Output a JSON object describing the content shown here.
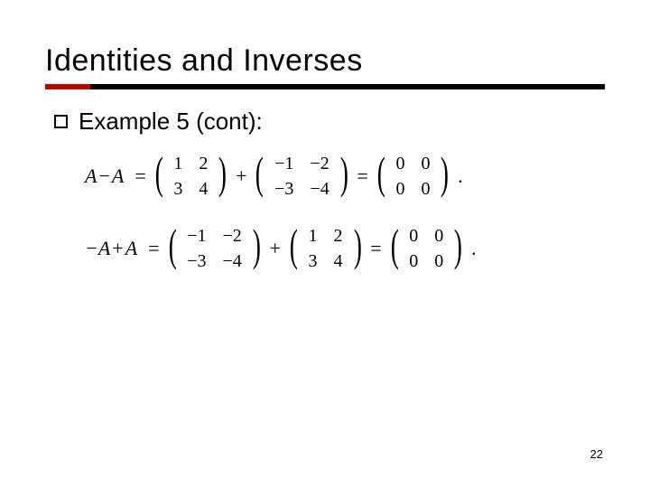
{
  "title": "Identities and Inverses",
  "underline": {
    "primary_color": "#b80000",
    "secondary_color": "#000000"
  },
  "bullet": {
    "text": "Example 5 (cont):"
  },
  "equations": [
    {
      "lhs_pre": "A",
      "lhs_op": "−",
      "lhs_post": "A",
      "m1": [
        [
          "1",
          "2"
        ],
        [
          "3",
          "4"
        ]
      ],
      "m2": [
        [
          "−1",
          "−2"
        ],
        [
          "−3",
          "−4"
        ]
      ],
      "res": [
        [
          "0",
          "0"
        ],
        [
          "0",
          "0"
        ]
      ]
    },
    {
      "lhs_pre": "−A",
      "lhs_op": "+",
      "lhs_post": "A",
      "m1": [
        [
          "−1",
          "−2"
        ],
        [
          "−3",
          "−4"
        ]
      ],
      "m2": [
        [
          "1",
          "2"
        ],
        [
          "3",
          "4"
        ]
      ],
      "res": [
        [
          "0",
          "0"
        ],
        [
          "0",
          "0"
        ]
      ]
    }
  ],
  "page_number": "22"
}
